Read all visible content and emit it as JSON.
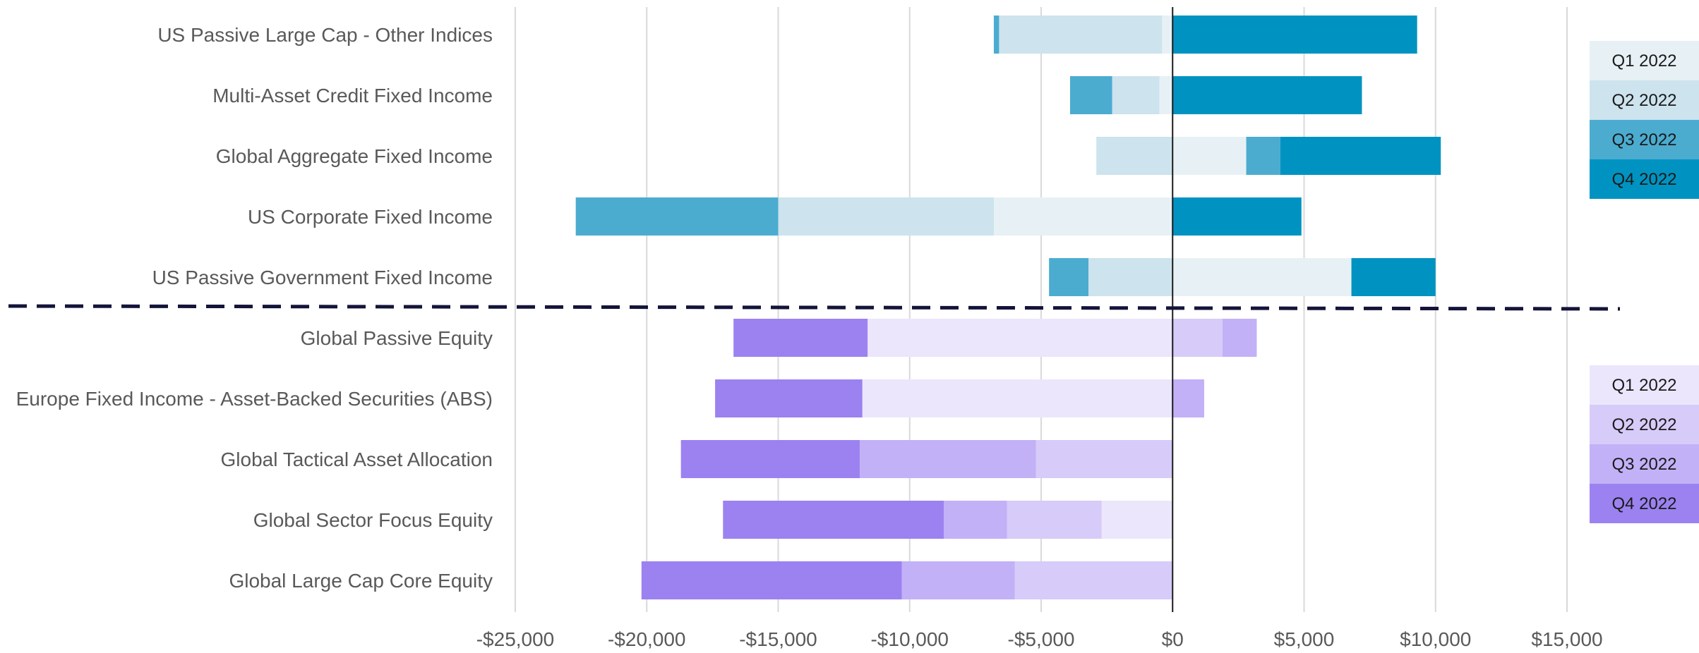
{
  "chart_data": {
    "type": "bar",
    "orientation": "horizontal",
    "stacked": true,
    "title": "",
    "xlabel": "",
    "ylabel": "",
    "xlim": [
      -25000,
      15000
    ],
    "x_ticks": [
      -25000,
      -20000,
      -15000,
      -10000,
      -5000,
      0,
      5000,
      10000,
      15000
    ],
    "x_tick_labels": [
      "-$25,000",
      "-$20,000",
      "-$15,000",
      "-$10,000",
      "-$5,000",
      "$0",
      "$5,000",
      "$10,000",
      "$15,000"
    ],
    "grid": "vertical",
    "legend_placement": "right",
    "groups": [
      {
        "legend": {
          "entries": [
            "Q1 2022",
            "Q2 2022",
            "Q3 2022",
            "Q4 2022"
          ],
          "colors": [
            "#e7f1f5",
            "#cde3ed",
            "#4bacd0",
            "#0093c1"
          ]
        },
        "categories": [
          "US Passive Large Cap - Other Indices",
          "Multi-Asset Credit Fixed Income",
          "Global Aggregate Fixed Income",
          "US Corporate Fixed Income",
          "US Passive Government Fixed Income"
        ],
        "series": [
          {
            "name": "Q1 2022",
            "values": [
              -400,
              -500,
              2800,
              -6800,
              6800
            ]
          },
          {
            "name": "Q2 2022",
            "values": [
              -6200,
              -1800,
              -2900,
              -8200,
              -3200
            ]
          },
          {
            "name": "Q3 2022",
            "values": [
              -200,
              -1600,
              1300,
              -7700,
              -1500
            ]
          },
          {
            "name": "Q4 2022",
            "values": [
              9300,
              7200,
              6100,
              4900,
              3200
            ]
          }
        ]
      },
      {
        "legend": {
          "entries": [
            "Q1 2022",
            "Q2 2022",
            "Q3 2022",
            "Q4 2022"
          ],
          "colors": [
            "#ebe6fc",
            "#d7cbf9",
            "#c2b1f7",
            "#9b82f0"
          ]
        },
        "categories": [
          "Global Passive Equity",
          "Europe Fixed Income - Asset-Backed Securities (ABS)",
          "Global Tactical Asset Allocation",
          "Global Sector Focus Equity",
          "Global Large Cap Core Equity"
        ],
        "series": [
          {
            "name": "Q1 2022",
            "values": [
              -11600,
              -11800,
              0,
              -2700,
              0
            ]
          },
          {
            "name": "Q2 2022",
            "values": [
              1900,
              0,
              -5200,
              -3600,
              -6000
            ]
          },
          {
            "name": "Q3 2022",
            "values": [
              1300,
              1200,
              -6700,
              -2400,
              -4300
            ]
          },
          {
            "name": "Q4 2022",
            "values": [
              -5100,
              -5600,
              -6800,
              -8400,
              -9900
            ]
          }
        ]
      }
    ]
  }
}
